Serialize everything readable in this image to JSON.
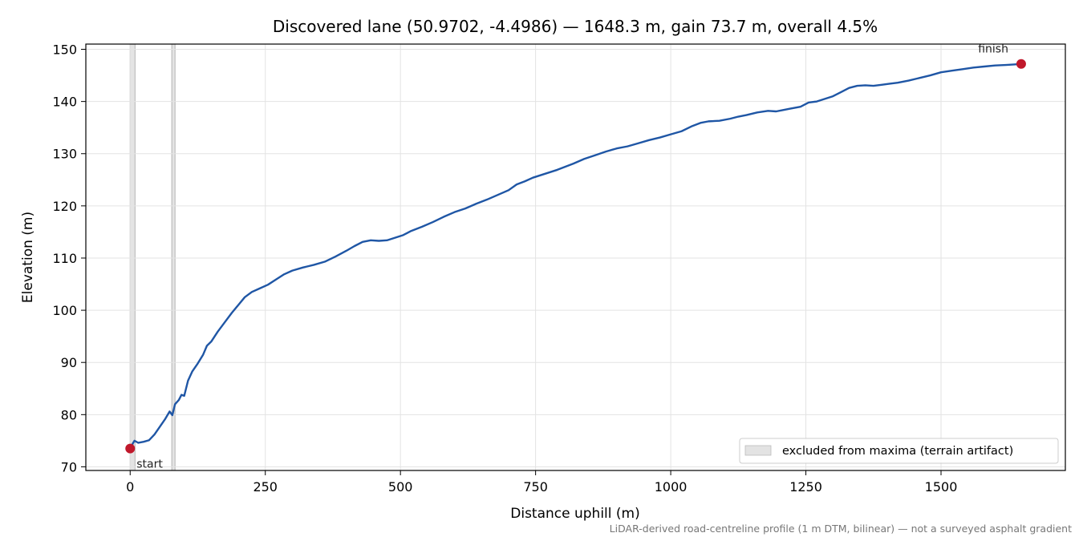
{
  "chart_data": {
    "type": "line",
    "title": "Discovered lane (50.9702, -4.4986) — 1648.3 m, gain 73.7 m, overall 4.5%",
    "xlabel": "Distance uphill (m)",
    "ylabel": "Elevation (m)",
    "xlim": [
      -82,
      1730
    ],
    "ylim": [
      69.3,
      151.0
    ],
    "x_ticks": [
      0,
      250,
      500,
      750,
      1000,
      1250,
      1500
    ],
    "y_ticks": [
      70,
      80,
      90,
      100,
      110,
      120,
      130,
      140,
      150
    ],
    "grid": true,
    "legend_placement": "lower-right",
    "legend_entries": [
      "excluded from maxima (terrain artifact)"
    ],
    "excluded_bands": [
      [
        0,
        9
      ],
      [
        77,
        83
      ]
    ],
    "series": [
      {
        "color": "#1f56a5",
        "points": [
          [
            0,
            73.5
          ],
          [
            5,
            74.5
          ],
          [
            8,
            75.0
          ],
          [
            15,
            74.6
          ],
          [
            25,
            74.8
          ],
          [
            35,
            75.1
          ],
          [
            45,
            76.2
          ],
          [
            55,
            77.7
          ],
          [
            65,
            79.2
          ],
          [
            73,
            80.6
          ],
          [
            78,
            79.9
          ],
          [
            83,
            82.0
          ],
          [
            90,
            82.8
          ],
          [
            95,
            83.8
          ],
          [
            100,
            83.6
          ],
          [
            107,
            86.5
          ],
          [
            115,
            88.3
          ],
          [
            125,
            89.8
          ],
          [
            135,
            91.5
          ],
          [
            142,
            93.2
          ],
          [
            150,
            94.0
          ],
          [
            162,
            95.9
          ],
          [
            175,
            97.7
          ],
          [
            188,
            99.5
          ],
          [
            200,
            101.0
          ],
          [
            212,
            102.5
          ],
          [
            225,
            103.5
          ],
          [
            240,
            104.2
          ],
          [
            255,
            104.9
          ],
          [
            270,
            105.9
          ],
          [
            285,
            106.9
          ],
          [
            300,
            107.6
          ],
          [
            320,
            108.2
          ],
          [
            340,
            108.7
          ],
          [
            360,
            109.3
          ],
          [
            380,
            110.3
          ],
          [
            400,
            111.4
          ],
          [
            415,
            112.3
          ],
          [
            430,
            113.1
          ],
          [
            445,
            113.4
          ],
          [
            460,
            113.3
          ],
          [
            475,
            113.4
          ],
          [
            490,
            113.9
          ],
          [
            505,
            114.4
          ],
          [
            520,
            115.2
          ],
          [
            540,
            116.0
          ],
          [
            560,
            116.9
          ],
          [
            580,
            117.9
          ],
          [
            600,
            118.8
          ],
          [
            620,
            119.5
          ],
          [
            640,
            120.4
          ],
          [
            660,
            121.2
          ],
          [
            680,
            122.1
          ],
          [
            700,
            123.0
          ],
          [
            715,
            124.1
          ],
          [
            730,
            124.7
          ],
          [
            745,
            125.4
          ],
          [
            760,
            125.9
          ],
          [
            775,
            126.4
          ],
          [
            790,
            126.9
          ],
          [
            805,
            127.5
          ],
          [
            820,
            128.1
          ],
          [
            840,
            129.0
          ],
          [
            860,
            129.7
          ],
          [
            880,
            130.4
          ],
          [
            900,
            131.0
          ],
          [
            920,
            131.4
          ],
          [
            940,
            132.0
          ],
          [
            960,
            132.6
          ],
          [
            980,
            133.1
          ],
          [
            1000,
            133.7
          ],
          [
            1020,
            134.3
          ],
          [
            1040,
            135.3
          ],
          [
            1055,
            135.9
          ],
          [
            1070,
            136.2
          ],
          [
            1090,
            136.3
          ],
          [
            1110,
            136.7
          ],
          [
            1125,
            137.1
          ],
          [
            1140,
            137.4
          ],
          [
            1160,
            137.9
          ],
          [
            1180,
            138.2
          ],
          [
            1195,
            138.1
          ],
          [
            1205,
            138.3
          ],
          [
            1220,
            138.6
          ],
          [
            1240,
            139.0
          ],
          [
            1255,
            139.8
          ],
          [
            1270,
            140.0
          ],
          [
            1285,
            140.5
          ],
          [
            1300,
            141.0
          ],
          [
            1315,
            141.8
          ],
          [
            1330,
            142.6
          ],
          [
            1345,
            143.0
          ],
          [
            1360,
            143.1
          ],
          [
            1375,
            143.0
          ],
          [
            1390,
            143.2
          ],
          [
            1405,
            143.4
          ],
          [
            1420,
            143.6
          ],
          [
            1440,
            144.0
          ],
          [
            1460,
            144.5
          ],
          [
            1480,
            145.0
          ],
          [
            1500,
            145.6
          ],
          [
            1520,
            145.9
          ],
          [
            1540,
            146.2
          ],
          [
            1560,
            146.5
          ],
          [
            1580,
            146.7
          ],
          [
            1600,
            146.9
          ],
          [
            1620,
            147.0
          ],
          [
            1635,
            147.1
          ],
          [
            1648.3,
            147.2
          ]
        ]
      }
    ],
    "markers": [
      {
        "x": 0,
        "y": 73.5,
        "label": "start",
        "color": "#c0182b"
      },
      {
        "x": 1648.3,
        "y": 147.2,
        "label": "finish",
        "color": "#c0182b"
      }
    ],
    "footnote": "LiDAR-derived road-centreline profile (1 m DTM, bilinear) — not a surveyed asphalt gradient"
  }
}
